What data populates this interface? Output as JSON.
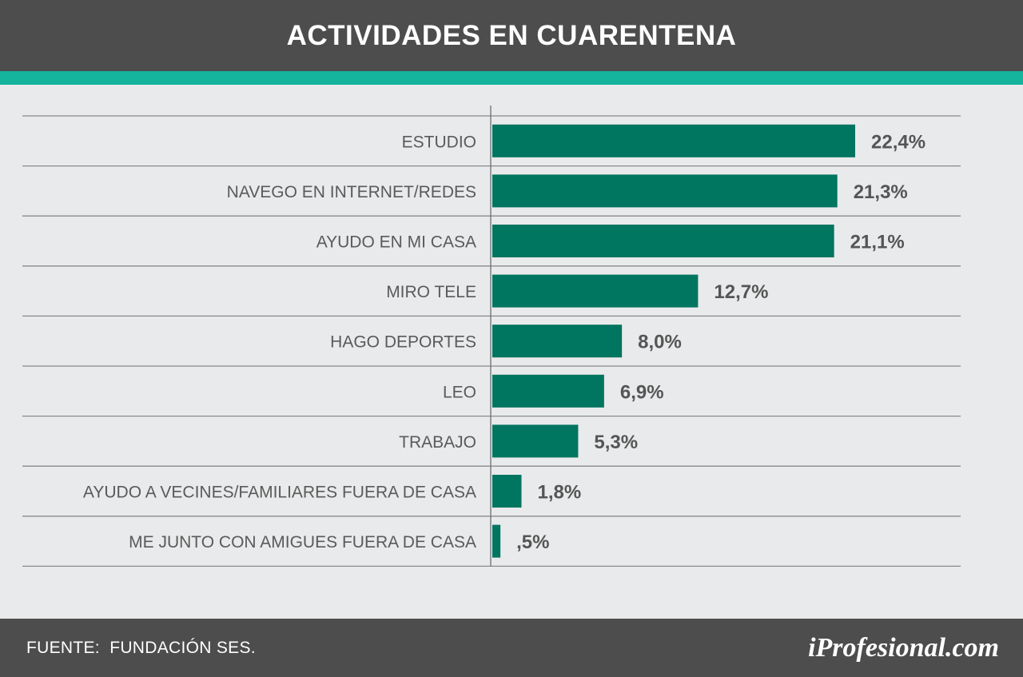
{
  "header": {
    "title": "ACTIVIDADES EN CUARENTENA"
  },
  "colors": {
    "header_bg": "#4d4d4d",
    "accent": "#13b39c",
    "bar": "#007560",
    "background": "#e9eaeb",
    "label": "#5a5a5a",
    "value": "#555555"
  },
  "chart_data": {
    "type": "bar",
    "orientation": "horizontal",
    "categories": [
      "ESTUDIO",
      "NAVEGO EN INTERNET/REDES",
      "AYUDO EN MI CASA",
      "MIRO TELE",
      "HAGO DEPORTES",
      "LEO",
      "TRABAJO",
      "AYUDO A VECINES/FAMILIARES FUERA DE CASA",
      "ME JUNTO CON AMIGUES FUERA DE CASA"
    ],
    "values": [
      22.4,
      21.3,
      21.1,
      12.7,
      8.0,
      6.9,
      5.3,
      1.8,
      0.5
    ],
    "value_labels": [
      "22,4%",
      "21,3%",
      "21,1%",
      "12,7%",
      "8,0%",
      "6,9%",
      "5,3%",
      "1,8%",
      ",5%"
    ],
    "xlim": [
      0,
      25
    ],
    "grid": "horizontal row separators"
  },
  "footer": {
    "source": "FUENTE:  FUNDACIÓN SES.",
    "logo": "iProfesional.com"
  }
}
